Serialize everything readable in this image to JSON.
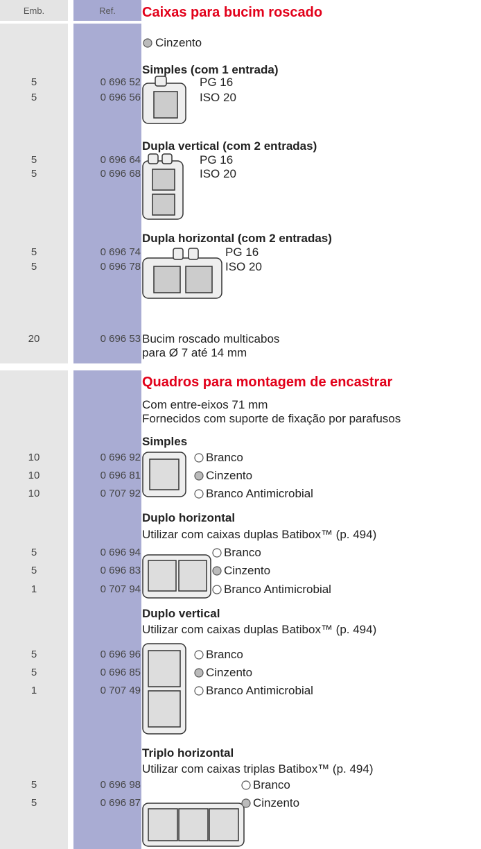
{
  "header": {
    "emb": "Emb.",
    "ref": "Ref."
  },
  "sections": [
    {
      "title": "Caixas para bucim roscado",
      "color_note": "Cinzento",
      "groups": [
        {
          "name": "Simples (com 1 entrada)",
          "rows": [
            {
              "emb": 5,
              "ref": "0 696 52",
              "label": "PG 16"
            },
            {
              "emb": 5,
              "ref": "0 696 56",
              "label": "ISO 20"
            }
          ]
        },
        {
          "name": "Dupla vertical (com 2 entradas)",
          "rows": [
            {
              "emb": 5,
              "ref": "0 696 64",
              "label": "PG 16"
            },
            {
              "emb": 5,
              "ref": "0 696 68",
              "label": "ISO 20"
            }
          ]
        },
        {
          "name": "Dupla horizontal (com 2 entradas)",
          "rows": [
            {
              "emb": 5,
              "ref": "0 696 74",
              "label": "PG 16"
            },
            {
              "emb": 5,
              "ref": "0 696 78",
              "label": "ISO 20"
            }
          ]
        },
        {
          "rows": [
            {
              "emb": 20,
              "ref": "0 696 53",
              "label": "Bucim roscado multicabos",
              "label2": "para Ø 7 até 14 mm"
            }
          ]
        }
      ]
    },
    {
      "title": "Quadros para montagem de encastrar",
      "intro": [
        "Com entre-eixos 71 mm",
        "Fornecidos com suporte de fixação por parafusos"
      ],
      "groups": [
        {
          "name": "Simples",
          "rows": [
            {
              "emb": 10,
              "ref": "0 696 92",
              "label": "Branco"
            },
            {
              "emb": 10,
              "ref": "0 696 81",
              "label": "Cinzento"
            },
            {
              "emb": 10,
              "ref": "0 707 92",
              "label": "Branco Antimicrobial"
            }
          ]
        },
        {
          "name": "Duplo horizontal",
          "note": "Utilizar com caixas duplas Batibox™ (p. 494)",
          "rows": [
            {
              "emb": 5,
              "ref": "0 696 94",
              "label": "Branco"
            },
            {
              "emb": 5,
              "ref": "0 696 83",
              "label": "Cinzento"
            },
            {
              "emb": 1,
              "ref": "0 707 94",
              "label": "Branco Antimicrobial"
            }
          ]
        },
        {
          "name": "Duplo vertical",
          "note": "Utilizar com caixas duplas Batibox™ (p. 494)",
          "rows": [
            {
              "emb": 5,
              "ref": "0 696 96",
              "label": "Branco"
            },
            {
              "emb": 5,
              "ref": "0 696 85",
              "label": "Cinzento"
            },
            {
              "emb": 1,
              "ref": "0 707 49",
              "label": "Branco Antimicrobial"
            }
          ]
        },
        {
          "name": "Triplo horizontal",
          "note": "Utilizar com caixas triplas Batibox™ (p. 494)",
          "rows": [
            {
              "emb": 5,
              "ref": "0 696 98",
              "label": "Branco"
            },
            {
              "emb": 5,
              "ref": "0 696 87",
              "label": "Cinzento"
            }
          ]
        }
      ]
    }
  ]
}
